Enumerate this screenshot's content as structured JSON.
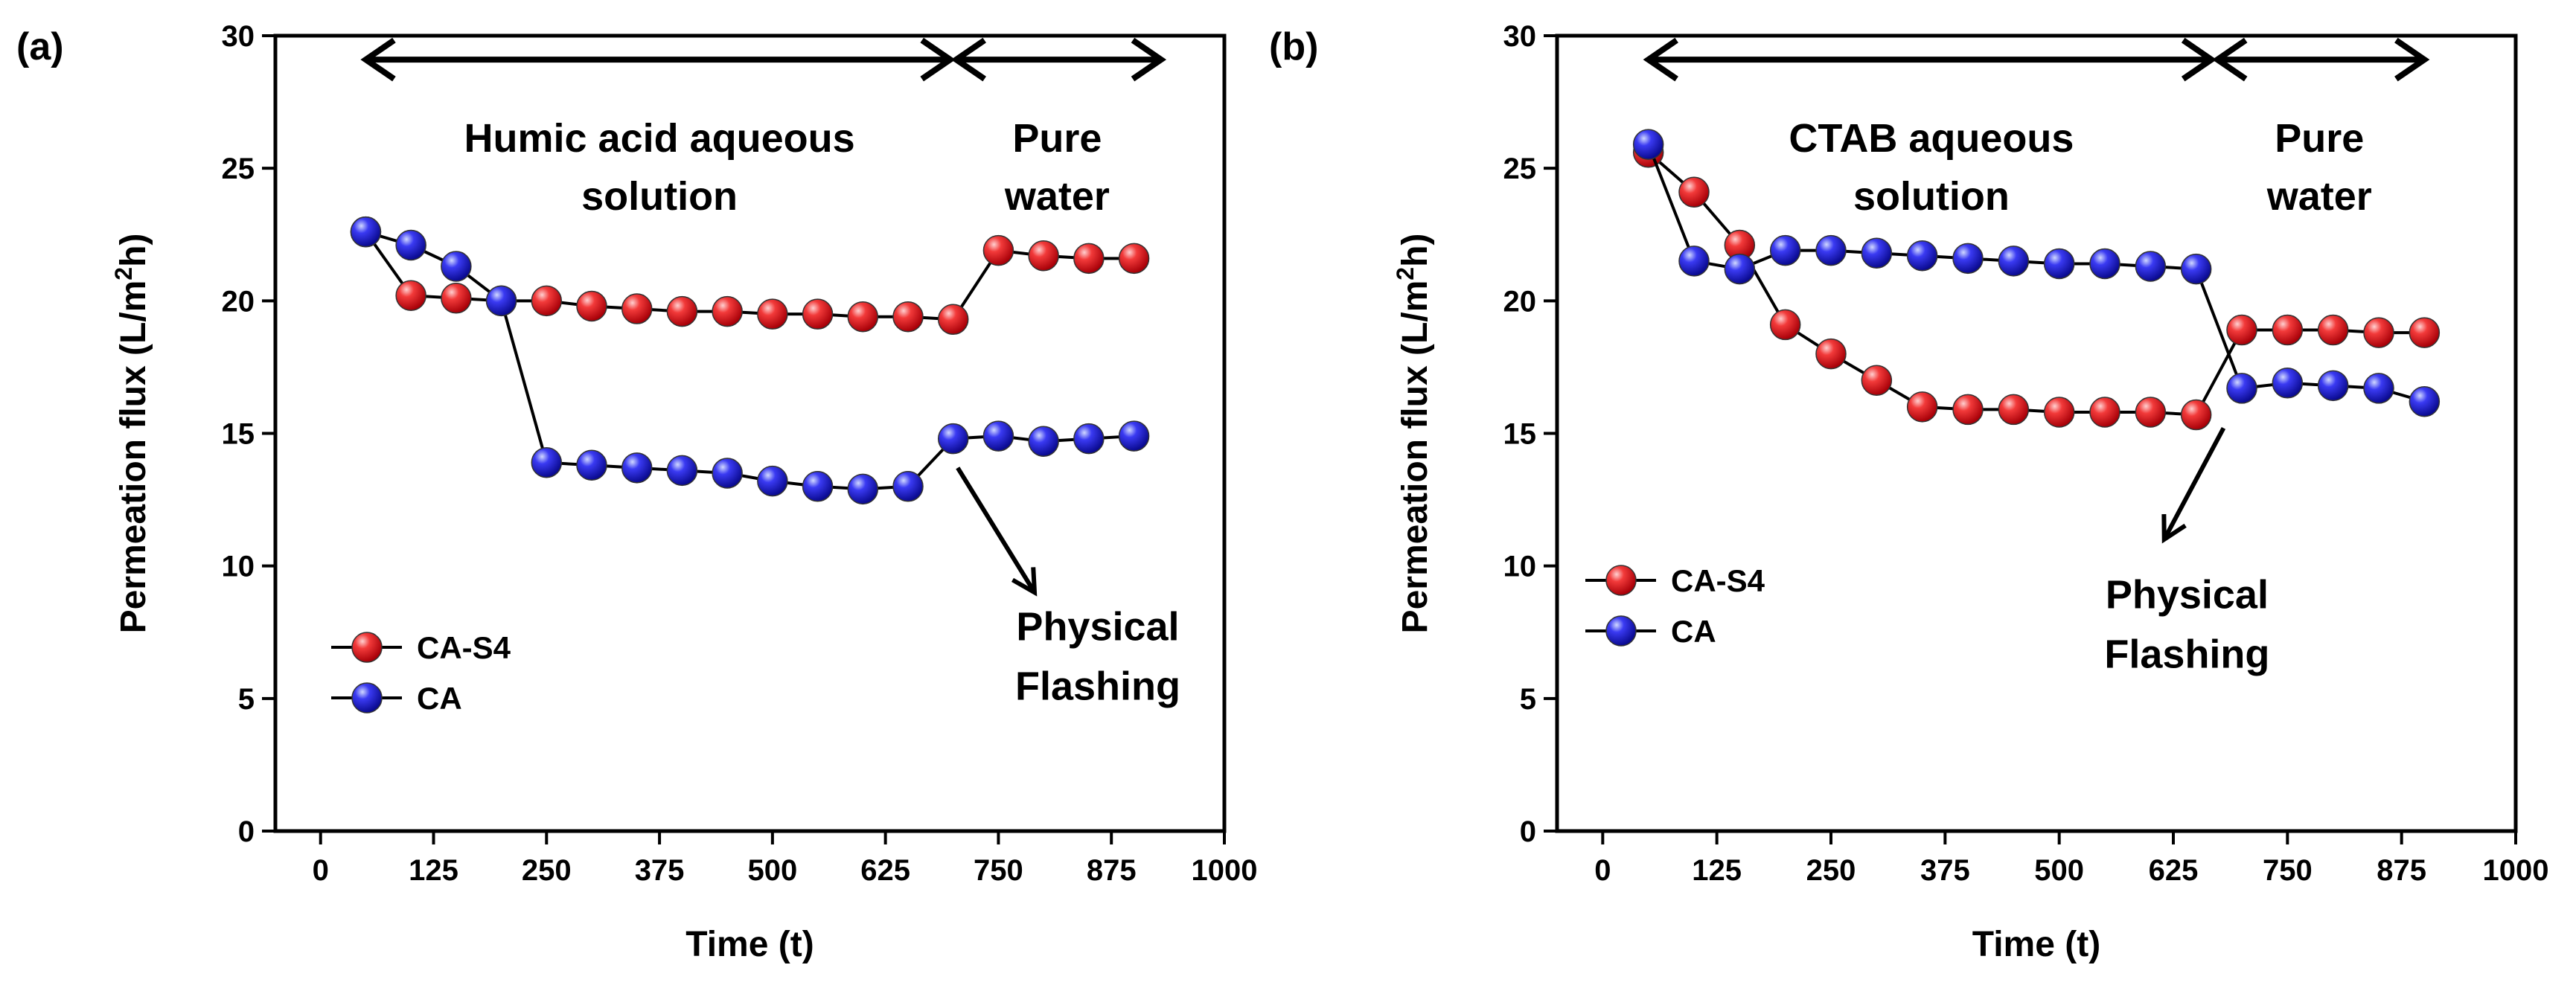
{
  "chart_data": [
    {
      "type": "line",
      "panel_label": "(a)",
      "xlabel": "Time (t)",
      "ylabel": "Permeation flux (L/m²h)",
      "ylabel_parts": [
        "Permeation flux (L/m",
        "2",
        "h)"
      ],
      "xlim": [
        -50,
        1000
      ],
      "ylim": [
        0,
        30
      ],
      "xticks": [
        0,
        125,
        250,
        375,
        500,
        625,
        750,
        875,
        1000
      ],
      "yticks": [
        0,
        5,
        10,
        15,
        20,
        25,
        30
      ],
      "x": [
        50,
        100,
        150,
        200,
        250,
        300,
        350,
        400,
        450,
        500,
        550,
        600,
        650,
        700,
        750,
        800,
        850,
        900
      ],
      "series": [
        {
          "name": "CA-S4",
          "color": "#e8141b",
          "values": [
            22.6,
            20.2,
            20.1,
            20.0,
            20.0,
            19.8,
            19.7,
            19.6,
            19.6,
            19.5,
            19.5,
            19.4,
            19.4,
            19.3,
            21.9,
            21.7,
            21.6,
            21.6
          ]
        },
        {
          "name": "CA",
          "color": "#1c1cdc",
          "values": [
            22.6,
            22.1,
            21.3,
            20.0,
            13.9,
            13.8,
            13.7,
            13.6,
            13.5,
            13.2,
            13.0,
            12.9,
            13.0,
            14.8,
            14.9,
            14.7,
            14.8,
            14.9
          ]
        }
      ],
      "annotations": {
        "phase1_lines": [
          "Humic acid aqueous",
          "solution"
        ],
        "phase2_lines": [
          "Pure",
          "water"
        ],
        "flash_lines": [
          "Physical",
          "Flashing"
        ],
        "phase1_span": [
          50,
          700
        ],
        "phase2_span": [
          700,
          930
        ],
        "arrow_y": 29.1
      },
      "legend_position": "bottom-left"
    },
    {
      "type": "line",
      "panel_label": "(b)",
      "xlabel": "Time (t)",
      "ylabel": "Permeation flux (L/m²h)",
      "ylabel_parts": [
        "Permeation flux (L/m",
        "2",
        "h)"
      ],
      "xlim": [
        -50,
        1000
      ],
      "ylim": [
        0,
        30
      ],
      "xticks": [
        0,
        125,
        250,
        375,
        500,
        625,
        750,
        875,
        1000
      ],
      "yticks": [
        0,
        5,
        10,
        15,
        20,
        25,
        30
      ],
      "x": [
        50,
        100,
        150,
        200,
        250,
        300,
        350,
        400,
        450,
        500,
        550,
        600,
        650,
        700,
        750,
        800,
        850,
        900
      ],
      "series": [
        {
          "name": "CA-S4",
          "color": "#e8141b",
          "values": [
            25.6,
            24.1,
            22.1,
            19.1,
            18.0,
            17.0,
            16.0,
            15.9,
            15.9,
            15.8,
            15.8,
            15.8,
            15.7,
            18.9,
            18.9,
            18.9,
            18.8,
            18.8
          ]
        },
        {
          "name": "CA",
          "color": "#1c1cdc",
          "values": [
            25.9,
            21.5,
            21.2,
            21.9,
            21.9,
            21.8,
            21.7,
            21.6,
            21.5,
            21.4,
            21.4,
            21.3,
            21.2,
            16.7,
            16.9,
            16.8,
            16.7,
            16.2
          ]
        }
      ],
      "annotations": {
        "phase1_lines": [
          "CTAB aqueous",
          "solution"
        ],
        "phase2_lines": [
          "Pure",
          "water"
        ],
        "flash_lines": [
          "Physical",
          "Flashing"
        ],
        "phase1_span": [
          50,
          670
        ],
        "phase2_span": [
          670,
          900
        ],
        "arrow_y": 29.1
      },
      "legend_position": "center-left"
    }
  ]
}
